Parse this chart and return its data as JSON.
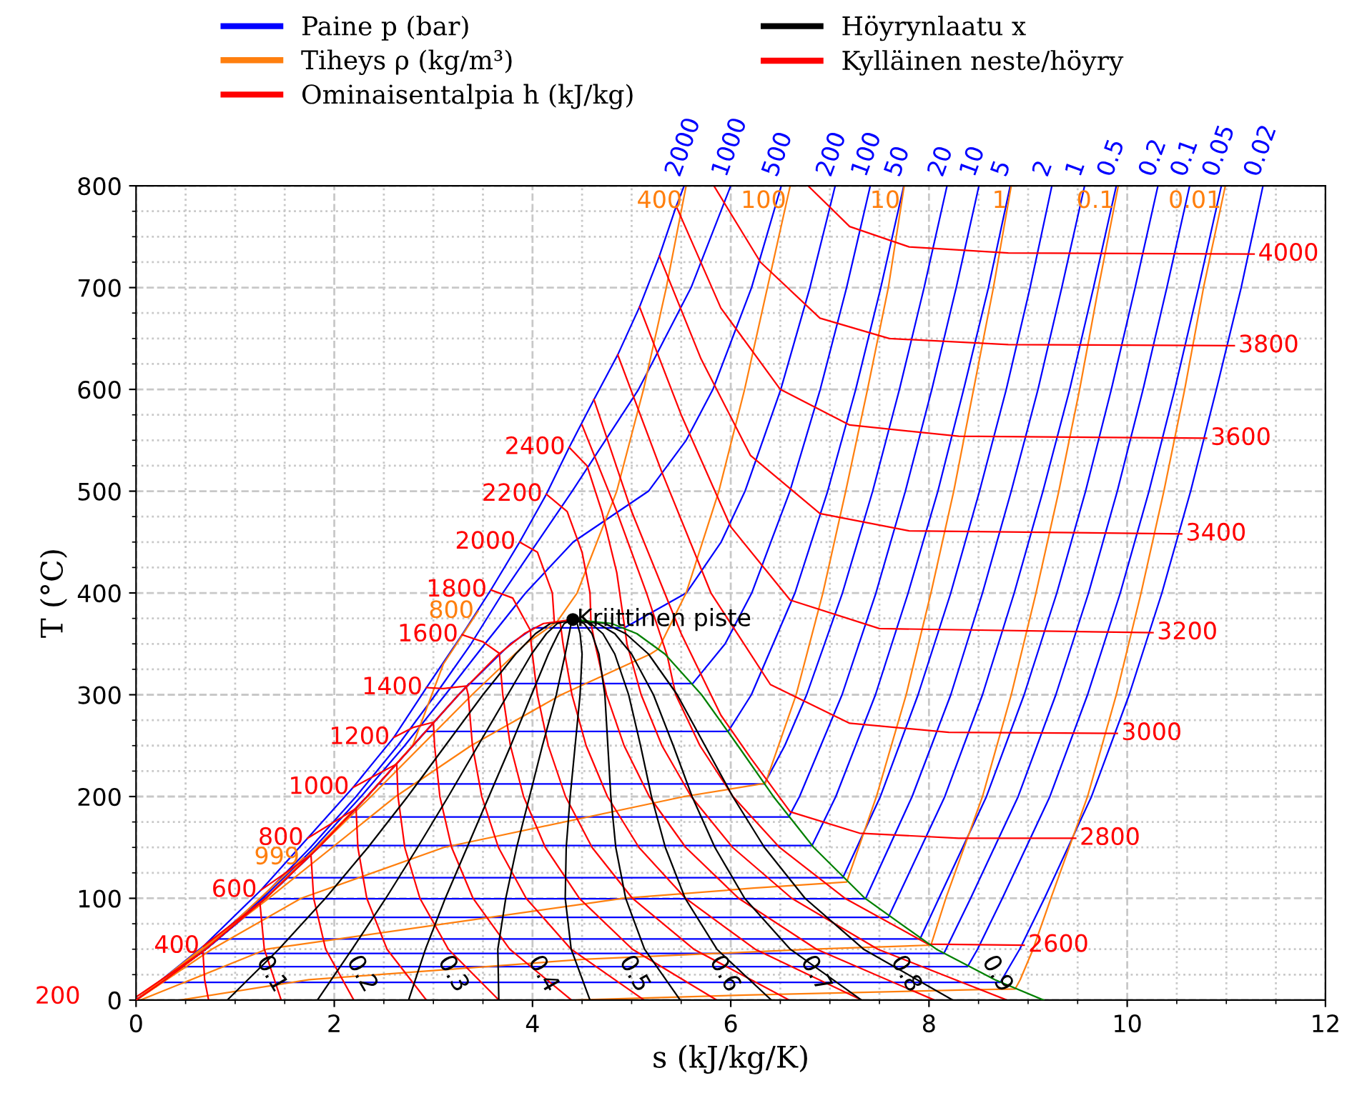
{
  "chart_data": {
    "type": "line",
    "xlabel": "s (kJ/kg/K)",
    "ylabel": "T (°C)",
    "xlim": [
      0,
      12
    ],
    "ylim": [
      0,
      800
    ],
    "xticks": [
      0,
      2,
      4,
      6,
      8,
      10,
      12
    ],
    "yticks": [
      0,
      100,
      200,
      300,
      400,
      500,
      600,
      700,
      800
    ],
    "grid": true,
    "legend": "top",
    "line_style": "solid",
    "marker": "none",
    "series": [
      {
        "name": "Paine p (bar)",
        "color": "#0000ff",
        "x": [
          0,
          0.68,
          1.26,
          1.73,
          2.19,
          2.6,
          2.93,
          3.29,
          3.58,
          3.87,
          4.14,
          4.37,
          4.62,
          4.86,
          5.08,
          5.28,
          5.45,
          5.53
        ],
        "values": [
          0.01,
          53,
          108,
          159,
          209,
          258,
          307,
          359,
          403,
          450,
          497,
          543,
          590,
          634,
          681,
          731,
          780,
          800
        ]
      },
      {
        "color": "#0000ff",
        "x": [
          0,
          0.68,
          1.26,
          1.76,
          2.22,
          2.64,
          3.02,
          3.38,
          3.7,
          4.05,
          4.4,
          5.07,
          5.6,
          6.0
        ],
        "values": [
          0.01,
          50,
          100,
          150,
          200,
          250,
          300,
          350,
          400,
          450,
          500,
          600,
          700,
          800
        ]
      },
      {
        "color": "#0000ff",
        "x": [
          0,
          0.69,
          1.28,
          1.8,
          2.27,
          2.71,
          3.12,
          3.52,
          3.93,
          4.41,
          5.17,
          5.55,
          5.82,
          6.21,
          6.51
        ],
        "values": [
          0.01,
          50,
          100,
          150,
          200,
          250,
          300,
          350,
          400,
          450,
          500,
          550,
          600,
          700,
          800
        ]
      },
      {
        "color": "#0000ff",
        "x": [
          0,
          0.7038,
          1.3069,
          1.8418,
          2.3305,
          2.7935,
          3.2548,
          3.7777,
          4.0146,
          4.928,
          5.552,
          5.903,
          6.144,
          6.505,
          6.799,
          7.054
        ],
        "values": [
          0.01,
          50,
          100,
          150,
          200,
          250,
          300,
          350,
          365.75,
          365.75,
          400,
          450,
          500,
          600,
          700,
          800
        ]
      },
      {
        "color": "#0000ff",
        "x": [
          0,
          0.7038,
          1.3069,
          1.8418,
          2.3305,
          2.7935,
          3.2548,
          3.3603,
          5.616,
          5.943,
          6.212,
          6.597,
          6.903,
          7.169,
          7.408
        ],
        "values": [
          0.01,
          50,
          100,
          150,
          200,
          250,
          300,
          311,
          311,
          350,
          400,
          500,
          600,
          700,
          800
        ]
      },
      {
        "color": "#0000ff",
        "x": [
          0,
          0.7038,
          1.3069,
          1.8418,
          2.3305,
          2.7935,
          2.9207,
          5.974,
          6.208,
          6.648,
          6.978,
          7.261,
          7.514,
          7.746
        ],
        "values": [
          0.01,
          50,
          100,
          150,
          200,
          250,
          263.9,
          263.9,
          300,
          400,
          500,
          600,
          700,
          800
        ]
      },
      {
        "color": "#0000ff",
        "x": [
          0,
          0.7038,
          1.3069,
          1.8418,
          2.3305,
          2.4468,
          6.339,
          6.545,
          6.766,
          7.127,
          7.432,
          7.702,
          7.951,
          8.182
        ],
        "values": [
          0.01,
          50,
          100,
          150,
          200,
          212.4,
          212.4,
          250,
          300,
          400,
          500,
          600,
          700,
          800
        ]
      },
      {
        "color": "#0000ff",
        "x": [
          0,
          0.7038,
          1.3069,
          1.8418,
          2.1381,
          6.585,
          6.694,
          7.123,
          7.465,
          7.762,
          8.029,
          8.275,
          8.504
        ],
        "values": [
          0.01,
          50,
          100,
          150,
          179.9,
          179.9,
          200,
          300,
          400,
          500,
          600,
          700,
          800
        ]
      },
      {
        "color": "#0000ff",
        "x": [
          0,
          0.7038,
          1.3069,
          1.8418,
          1.8604,
          6.82,
          7.06,
          7.46,
          7.79,
          8.09,
          8.35,
          8.6,
          8.82
        ],
        "values": [
          0.01,
          50,
          100,
          150,
          151.8,
          151.8,
          200,
          300,
          400,
          500,
          600,
          700,
          800
        ]
      },
      {
        "color": "#0000ff",
        "x": [
          0,
          0.7038,
          1.3069,
          1.5302,
          7.13,
          7.51,
          7.89,
          8.22,
          8.51,
          8.78,
          9.02,
          9.24
        ],
        "values": [
          0.01,
          50,
          100,
          120.2,
          120.2,
          200,
          300,
          400,
          500,
          600,
          700,
          800
        ]
      },
      {
        "color": "#0000ff",
        "x": [
          0,
          0.7038,
          1.3028,
          7.36,
          7.83,
          8.22,
          8.54,
          8.83,
          9.1,
          9.34,
          9.57
        ],
        "values": [
          0.01,
          50,
          99.6,
          99.6,
          200,
          300,
          400,
          500,
          600,
          700,
          800
        ]
      },
      {
        "color": "#0000ff",
        "x": [
          0,
          0.7038,
          1.0912,
          7.59,
          7.68,
          8.16,
          8.54,
          8.86,
          9.15,
          9.42,
          9.66,
          9.89
        ],
        "values": [
          0.01,
          50,
          81.3,
          81.3,
          100,
          200,
          300,
          400,
          500,
          600,
          700,
          800
        ]
      },
      {
        "color": "#0000ff",
        "x": [
          0,
          0.7038,
          0.832,
          7.91,
          8.1,
          8.58,
          8.96,
          9.29,
          9.58,
          9.84,
          10.08,
          10.31
        ],
        "values": [
          0.01,
          50,
          60.1,
          60.1,
          100,
          200,
          300,
          400,
          500,
          600,
          700,
          800
        ]
      },
      {
        "color": "#0000ff",
        "x": [
          0,
          0.6492,
          8.15,
          8.42,
          8.9,
          9.28,
          9.61,
          9.9,
          10.16,
          10.4,
          10.63
        ],
        "values": [
          0.01,
          45.8,
          45.8,
          100,
          200,
          300,
          400,
          500,
          600,
          700,
          800
        ]
      },
      {
        "color": "#0000ff",
        "x": [
          0,
          0.4763,
          8.39,
          8.49,
          8.74,
          9.22,
          9.6,
          9.93,
          10.22,
          10.48,
          10.72,
          10.95
        ],
        "values": [
          0.01,
          32.9,
          32.9,
          50,
          100,
          200,
          300,
          400,
          500,
          600,
          700,
          800
        ]
      },
      {
        "color": "#0000ff",
        "x": [
          0,
          0.2606,
          8.72,
          8.915,
          9.165,
          9.64,
          10.02,
          10.35,
          10.64,
          10.9,
          11.15,
          11.37
        ],
        "values": [
          0.01,
          17.5,
          17.5,
          50,
          100,
          200,
          300,
          400,
          500,
          600,
          700,
          800
        ]
      },
      {
        "name": "Tiheys ρ (kg/m³)",
        "color": "#ff7f0e",
        "x": [
          5.55,
          5.35,
          5.12,
          4.85,
          4.45,
          4.25,
          3.93,
          3.39,
          2.37,
          1.312,
          0.0
        ],
        "values": [
          800,
          700,
          600,
          500,
          400,
          372,
          350,
          300,
          200,
          100,
          0.01
        ]
      },
      {
        "color": "#ff7f0e",
        "x": [
          6.6,
          6.37,
          6.14,
          5.88,
          5.55,
          5.27,
          5.19,
          4.29,
          3.38,
          2.62,
          1.34,
          0.0
        ],
        "values": [
          800,
          700,
          600,
          500,
          400,
          345,
          340,
          300,
          250,
          200,
          100,
          0.01
        ]
      },
      {
        "color": "#ff7f0e",
        "x": [
          7.75,
          7.59,
          7.38,
          7.16,
          6.93,
          6.66,
          6.35,
          5.53,
          3.106,
          1.665,
          0.765,
          0.004
        ],
        "values": [
          800,
          700,
          600,
          500,
          400,
          300,
          213,
          200,
          150,
          100,
          50,
          0.01
        ]
      },
      {
        "color": "#ff7f0e",
        "x": [
          8.83,
          8.65,
          8.45,
          8.25,
          8.02,
          7.77,
          7.47,
          7.17,
          6.23,
          4.92,
          1.317,
          0.044
        ],
        "values": [
          800,
          700,
          600,
          500,
          400,
          300,
          200,
          116,
          110,
          100,
          50,
          0.01
        ]
      },
      {
        "color": "#ff7f0e",
        "x": [
          9.91,
          9.71,
          9.52,
          9.31,
          9.08,
          8.83,
          8.54,
          8.17,
          8.02,
          6.83,
          4.51,
          1.745,
          0.444
        ],
        "values": [
          800,
          700,
          600,
          500,
          400,
          300,
          200,
          100,
          54,
          50,
          40,
          20,
          0.01
        ]
      },
      {
        "color": "#ff7f0e",
        "x": [
          10.99,
          10.77,
          10.58,
          10.37,
          10.14,
          9.89,
          9.6,
          9.23,
          9.05,
          8.92,
          8.87,
          8.38,
          6.16,
          4.44
        ],
        "values": [
          800,
          700,
          600,
          500,
          400,
          300,
          200,
          100,
          50,
          20,
          11,
          10,
          5,
          0.01
        ]
      },
      {
        "color": "#ff7f0e",
        "x": [
          3.45,
          3.1,
          2.79,
          2.333,
          1.3076,
          0.0
        ],
        "values": [
          382,
          330,
          250,
          200,
          100,
          0.01
        ]
      },
      {
        "color": "#ff7f0e",
        "x": [
          1.69,
          0.7,
          0.2
        ],
        "values": [
          140,
          50,
          13
        ]
      },
      {
        "name": "Ominaisentalpia h (kJ/kg)",
        "color": "#ff0000",
        "x": [
          0.0,
          0.675,
          0.692,
          0.732
        ],
        "values": [
          3,
          47.8,
          20,
          0.01
        ]
      },
      {
        "color": "#ff0000",
        "x": [
          0.68,
          1.25,
          1.294,
          1.464
        ],
        "values": [
          53,
          95.5,
          50,
          0.01
        ]
      },
      {
        "color": "#ff0000",
        "x": [
          1.26,
          1.765,
          1.792,
          1.913,
          2.197
        ],
        "values": [
          108,
          142.5,
          100,
          50,
          0.01
        ]
      },
      {
        "color": "#ff0000",
        "x": [
          1.73,
          2.22,
          2.238,
          2.328,
          2.532,
          2.929
        ],
        "values": [
          159,
          188.3,
          150,
          100,
          50,
          0.01
        ]
      },
      {
        "color": "#ff0000",
        "x": [
          2.19,
          2.63,
          2.643,
          2.711,
          2.864,
          3.151,
          3.661
        ],
        "values": [
          209,
          232,
          200,
          150,
          100,
          50,
          0.01
        ]
      },
      {
        "color": "#ff0000",
        "x": [
          2.6,
          2.8,
          3.0,
          3.012,
          3.065,
          3.184,
          3.4,
          3.77,
          4.393
        ],
        "values": [
          258,
          268,
          273,
          250,
          200,
          150,
          100,
          50,
          0.01
        ]
      },
      {
        "color": "#ff0000",
        "x": [
          2.93,
          3.1,
          3.33,
          3.351,
          3.394,
          3.488,
          3.656,
          3.936,
          4.389,
          5.126
        ],
        "values": [
          307,
          306,
          308.5,
          300,
          250,
          200,
          150,
          100,
          50,
          0.01
        ]
      },
      {
        "color": "#ff0000",
        "x": [
          3.29,
          3.5,
          3.665,
          3.7,
          3.777,
          3.91,
          4.129,
          4.472,
          5.008,
          5.858
        ],
        "values": [
          359,
          352,
          340.7,
          300,
          250,
          200,
          150,
          100,
          50,
          0.01
        ]
      },
      {
        "color": "#ff0000",
        "x": [
          3.58,
          3.8,
          3.98,
          3.986,
          4.049,
          4.159,
          4.333,
          4.601,
          5.008,
          5.627,
          6.59
        ],
        "values": [
          403,
          395,
          363,
          350,
          300,
          250,
          200,
          150,
          100,
          50,
          0.01
        ]
      },
      {
        "color": "#ff0000",
        "x": [
          3.87,
          4.05,
          4.2,
          4.22,
          4.281,
          4.308,
          4.398,
          4.541,
          4.756,
          5.074,
          5.544,
          6.246,
          7.322
        ],
        "values": [
          450,
          440,
          400,
          371.5,
          370,
          350,
          300,
          250,
          200,
          150,
          100,
          50,
          0.01
        ]
      },
      {
        "color": "#ff0000",
        "x": [
          4.14,
          4.35,
          4.5,
          4.58,
          4.59,
          4.631,
          4.747,
          4.924,
          5.178,
          5.546,
          6.08,
          6.865,
          8.054
        ],
        "values": [
          497,
          480,
          440,
          400,
          370,
          350,
          300,
          250,
          200,
          150,
          100,
          50,
          0.01
        ]
      },
      {
        "color": "#ff0000",
        "x": [
          4.37,
          4.55,
          4.7,
          4.85,
          4.93,
          4.953,
          5.096,
          5.306,
          5.601,
          6.019,
          6.616,
          7.484,
          8.786
        ],
        "values": [
          543,
          525,
          480,
          420,
          366,
          350,
          300,
          250,
          200,
          150,
          100,
          50,
          0.01
        ]
      },
      {
        "color": "#ff0000",
        "x": [
          4.5,
          4.85,
          5.15,
          5.36,
          5.445,
          5.689,
          6.023,
          6.492,
          7.152,
          7.99,
          8.96
        ],
        "values": [
          565,
          480,
          400,
          338,
          300,
          250,
          200,
          150,
          100,
          55,
          54
        ]
      },
      {
        "color": "#ff0000",
        "x": [
          4.62,
          5.0,
          5.5,
          5.9,
          6.2,
          6.6,
          7.3,
          8.3,
          9.48
        ],
        "values": [
          590,
          480,
          360,
          280,
          238,
          185,
          164,
          159,
          159
        ]
      },
      {
        "color": "#ff0000",
        "x": [
          4.86,
          5.3,
          5.8,
          6.4,
          7.2,
          8.2,
          9.9
        ],
        "values": [
          634,
          520,
          400,
          310,
          272,
          263,
          262
        ]
      },
      {
        "color": "#ff0000",
        "x": [
          5.08,
          5.5,
          6.0,
          6.6,
          7.5,
          10.26
        ],
        "values": [
          681,
          575,
          465,
          393,
          365,
          361
        ]
      },
      {
        "color": "#ff0000",
        "x": [
          5.28,
          5.7,
          6.2,
          6.9,
          7.8,
          10.55
        ],
        "values": [
          731,
          630,
          535,
          478,
          461,
          458
        ]
      },
      {
        "color": "#ff0000",
        "x": [
          5.45,
          5.9,
          6.5,
          7.2,
          8.3,
          10.8
        ],
        "values": [
          780,
          680,
          600,
          565,
          554,
          552
        ]
      },
      {
        "color": "#ff0000",
        "x": [
          5.83,
          6.3,
          6.9,
          7.6,
          8.8,
          11.08
        ],
        "values": [
          800,
          725,
          670,
          650,
          644,
          643
        ]
      },
      {
        "color": "#ff0000",
        "x": [
          6.78,
          7.2,
          7.8,
          8.8,
          11.28
        ],
        "values": [
          800,
          760,
          740,
          734,
          733
        ]
      },
      {
        "name": "Höyrynlaatu x",
        "color": "#000000",
        "x": [
          0.92,
          1.44,
          1.91,
          2.34,
          2.74,
          3.12,
          3.5,
          3.83,
          4.03,
          4.18,
          4.407
        ],
        "values": [
          0.01,
          50,
          100,
          150,
          200,
          250,
          300,
          340,
          360,
          370,
          373.95
        ]
      },
      {
        "color": "#000000",
        "x": [
          1.83,
          2.18,
          2.52,
          2.84,
          3.15,
          3.45,
          3.75,
          3.99,
          4.14,
          4.25,
          4.407
        ],
        "values": [
          0.01,
          50,
          100,
          150,
          200,
          250,
          300,
          340,
          360,
          370,
          373.95
        ]
      },
      {
        "color": "#000000",
        "x": [
          2.75,
          2.92,
          3.12,
          3.34,
          3.56,
          3.78,
          3.99,
          4.16,
          4.26,
          4.32,
          4.407
        ],
        "values": [
          0.01,
          50,
          100,
          150,
          200,
          250,
          300,
          340,
          360,
          370,
          373.95
        ]
      },
      {
        "color": "#000000",
        "x": [
          3.66,
          3.65,
          3.73,
          3.84,
          3.97,
          4.1,
          4.24,
          4.33,
          4.37,
          4.39,
          4.407
        ],
        "values": [
          0.01,
          50,
          100,
          150,
          200,
          250,
          300,
          340,
          360,
          370,
          373.95
        ]
      },
      {
        "color": "#000000",
        "x": [
          4.58,
          4.39,
          4.33,
          4.34,
          4.38,
          4.43,
          4.48,
          4.5,
          4.48,
          4.45,
          4.407
        ],
        "values": [
          0.01,
          50,
          100,
          150,
          200,
          250,
          300,
          340,
          360,
          370,
          373.95
        ]
      },
      {
        "color": "#000000",
        "x": [
          5.49,
          5.13,
          4.94,
          4.84,
          4.79,
          4.76,
          4.73,
          4.67,
          4.6,
          4.52,
          4.407
        ],
        "values": [
          0.01,
          50,
          100,
          150,
          200,
          250,
          300,
          340,
          360,
          370,
          373.95
        ]
      },
      {
        "color": "#000000",
        "x": [
          6.41,
          5.86,
          5.54,
          5.34,
          5.2,
          5.09,
          4.97,
          4.83,
          4.71,
          4.59,
          4.407
        ],
        "values": [
          0.01,
          50,
          100,
          150,
          200,
          250,
          300,
          340,
          360,
          370,
          373.95
        ]
      },
      {
        "color": "#000000",
        "x": [
          7.32,
          6.6,
          6.14,
          5.84,
          5.61,
          5.42,
          5.22,
          5.0,
          4.83,
          4.66,
          4.407
        ],
        "values": [
          0.01,
          50,
          100,
          150,
          200,
          250,
          300,
          340,
          360,
          370,
          373.95
        ]
      },
      {
        "color": "#000000",
        "x": [
          8.24,
          7.34,
          6.75,
          6.34,
          6.02,
          5.74,
          5.46,
          5.17,
          4.94,
          4.73,
          4.407
        ],
        "values": [
          0.01,
          50,
          100,
          150,
          200,
          250,
          300,
          340,
          360,
          370,
          373.95
        ]
      },
      {
        "name": "Kylläinen neste/höyry",
        "color": "#ff0000",
        "x": [
          0,
          0.2965,
          0.7038,
          1.3069,
          1.8418,
          2.3305,
          2.7935,
          3.2548,
          3.6594,
          3.9167,
          4.1112,
          4.407
        ],
        "values": [
          0.01,
          20,
          50,
          100,
          150,
          200,
          250,
          300,
          340,
          360,
          370,
          373.95
        ]
      },
      {
        "color": "#008000",
        "x": [
          9.1556,
          8.6661,
          8.0749,
          7.3544,
          6.8371,
          6.4302,
          6.0721,
          5.7059,
          5.3357,
          5.0526,
          4.7971,
          4.407
        ],
        "values": [
          0.01,
          20,
          50,
          100,
          150,
          200,
          250,
          300,
          340,
          360,
          370,
          373.95
        ]
      },
      {
        "type": "scatter",
        "marker": "circle",
        "color": "#000000",
        "x": [
          4.407
        ],
        "values": [
          373.95
        ]
      }
    ],
    "annotations": [
      {
        "text": "2000",
        "x": 5.53,
        "y": 800
      },
      {
        "text": "1000",
        "x": 6.0,
        "y": 800
      },
      {
        "text": "500",
        "x": 6.51,
        "y": 800
      },
      {
        "text": "200",
        "x": 7.054,
        "y": 800
      },
      {
        "text": "100",
        "x": 7.408,
        "y": 800
      },
      {
        "text": "50",
        "x": 7.746,
        "y": 800
      },
      {
        "text": "20",
        "x": 8.182,
        "y": 800
      },
      {
        "text": "10",
        "x": 8.504,
        "y": 800
      },
      {
        "text": "5",
        "x": 8.82,
        "y": 800
      },
      {
        "text": "2",
        "x": 9.24,
        "y": 800
      },
      {
        "text": "1",
        "x": 9.57,
        "y": 800
      },
      {
        "text": "0.5",
        "x": 9.89,
        "y": 800
      },
      {
        "text": "0.2",
        "x": 10.31,
        "y": 800
      },
      {
        "text": "0.1",
        "x": 10.63,
        "y": 800
      },
      {
        "text": "0.05",
        "x": 10.95,
        "y": 800
      },
      {
        "text": "0.02",
        "x": 11.37,
        "y": 800
      },
      {
        "text": "400",
        "x": 5.55,
        "y": 800
      },
      {
        "text": "100",
        "x": 6.6,
        "y": 800
      },
      {
        "text": "10",
        "x": 7.75,
        "y": 800
      },
      {
        "text": "1",
        "x": 8.83,
        "y": 800
      },
      {
        "text": "0.1",
        "x": 9.91,
        "y": 800
      },
      {
        "text": "0.01",
        "x": 10.99,
        "y": 800
      },
      {
        "text": "800",
        "x": 3.45,
        "y": 382
      },
      {
        "text": "999",
        "x": 1.69,
        "y": 140
      },
      {
        "text": "200",
        "x": 0.0,
        "y": 3
      },
      {
        "text": "400",
        "x": 0.68,
        "y": 53
      },
      {
        "text": "600",
        "x": 1.26,
        "y": 108
      },
      {
        "text": "800",
        "x": 1.73,
        "y": 159
      },
      {
        "text": "1000",
        "x": 2.19,
        "y": 209
      },
      {
        "text": "1200",
        "x": 2.6,
        "y": 258
      },
      {
        "text": "1400",
        "x": 2.93,
        "y": 307
      },
      {
        "text": "1600",
        "x": 3.29,
        "y": 359
      },
      {
        "text": "1800",
        "x": 3.58,
        "y": 403
      },
      {
        "text": "2000",
        "x": 3.87,
        "y": 450
      },
      {
        "text": "2200",
        "x": 4.14,
        "y": 497
      },
      {
        "text": "2400",
        "x": 4.37,
        "y": 543
      },
      {
        "text": "2600",
        "x": 8.96,
        "y": 54
      },
      {
        "text": "2800",
        "x": 9.48,
        "y": 159
      },
      {
        "text": "3000",
        "x": 9.9,
        "y": 262
      },
      {
        "text": "3200",
        "x": 10.26,
        "y": 361
      },
      {
        "text": "3400",
        "x": 10.55,
        "y": 458
      },
      {
        "text": "3600",
        "x": 10.8,
        "y": 552
      },
      {
        "text": "3800",
        "x": 11.08,
        "y": 643
      },
      {
        "text": "4000",
        "x": 11.28,
        "y": 733
      },
      {
        "text": "0.1",
        "x": 0.92,
        "y": 0.01
      },
      {
        "text": "0.2",
        "x": 1.83,
        "y": 0.01
      },
      {
        "text": "0.3",
        "x": 2.75,
        "y": 0.01
      },
      {
        "text": "0.4",
        "x": 3.66,
        "y": 0.01
      },
      {
        "text": "0.5",
        "x": 4.58,
        "y": 0.01
      },
      {
        "text": "0.6",
        "x": 5.49,
        "y": 0.01
      },
      {
        "text": "0.7",
        "x": 6.41,
        "y": 0.01
      },
      {
        "text": "0.8",
        "x": 7.32,
        "y": 0.01
      },
      {
        "text": "0.9",
        "x": 8.24,
        "y": 0.01
      },
      {
        "text": "Kriittinen piste",
        "x": 4.407,
        "y": 373.95
      }
    ]
  }
}
